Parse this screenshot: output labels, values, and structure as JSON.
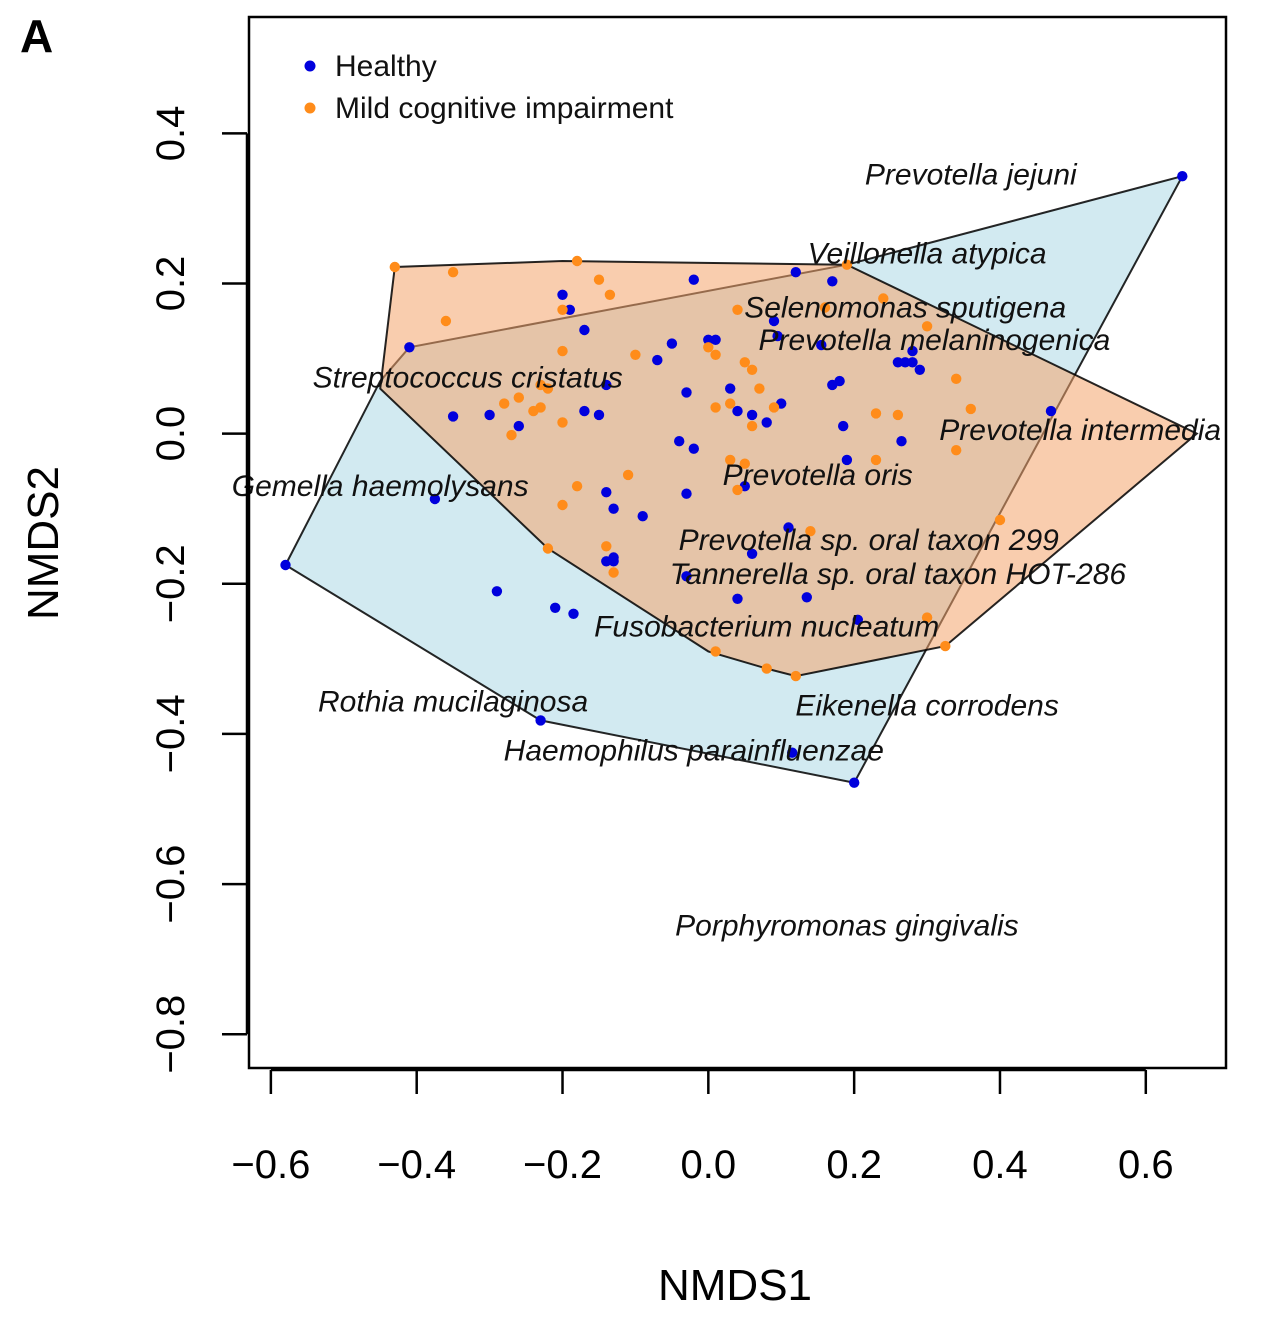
{
  "chart_data": {
    "type": "scatter",
    "panel_label": "A",
    "xlabel": "NMDS1",
    "ylabel": "NMDS2",
    "xlim": [
      -0.63,
      0.71
    ],
    "ylim": [
      -0.845,
      0.555
    ],
    "x_ticks": [
      -0.6,
      -0.4,
      -0.2,
      0.0,
      0.2,
      0.4,
      0.6
    ],
    "x_tick_labels": [
      "−0.6",
      "−0.4",
      "−0.2",
      "0.0",
      "0.2",
      "0.4",
      "0.6"
    ],
    "y_ticks": [
      0.4,
      0.2,
      0.0,
      -0.2,
      -0.4,
      -0.6,
      -0.8
    ],
    "y_tick_labels": [
      "0.4",
      "0.2",
      "0.0",
      "−0.2",
      "−0.4",
      "−0.6",
      "−0.8"
    ],
    "legend": {
      "position": "top-left",
      "entries": [
        {
          "name": "Healthy",
          "color": "#0000dd"
        },
        {
          "name": "Mild cognitive impairment",
          "color": "#ff8c1a"
        }
      ]
    },
    "hulls": [
      {
        "name": "Healthy",
        "fill": "#add8e6",
        "opacity": 0.55,
        "points": [
          [
            -0.58,
            -0.175
          ],
          [
            -0.45,
            0.07
          ],
          [
            -0.41,
            0.115
          ],
          [
            0.19,
            0.225
          ],
          [
            0.65,
            0.343
          ],
          [
            0.2,
            -0.465
          ],
          [
            -0.23,
            -0.382
          ]
        ]
      },
      {
        "name": "Mild cognitive impairment",
        "fill": "#f4a46b",
        "opacity": 0.55,
        "points": [
          [
            -0.45,
            0.06
          ],
          [
            -0.43,
            0.222
          ],
          [
            -0.2,
            0.23
          ],
          [
            0.19,
            0.225
          ],
          [
            0.67,
            0.0
          ],
          [
            0.325,
            -0.283
          ],
          [
            0.12,
            -0.323
          ],
          [
            0.08,
            -0.313
          ],
          [
            0.0,
            -0.29
          ],
          [
            -0.22,
            -0.153
          ]
        ]
      }
    ],
    "series": [
      {
        "name": "Healthy",
        "color": "#0000dd",
        "x": [
          0.65,
          -0.58,
          -0.41,
          -0.375,
          -0.23,
          0.2,
          0.12,
          0.17,
          -0.2,
          -0.19,
          -0.17,
          -0.14,
          -0.35,
          -0.3,
          -0.26,
          -0.17,
          -0.15,
          -0.14,
          -0.13,
          -0.13,
          -0.09,
          -0.05,
          -0.07,
          -0.02,
          0.0,
          0.01,
          0.09,
          0.095,
          0.155,
          0.17,
          0.18,
          0.185,
          0.19,
          0.265,
          0.27,
          0.28,
          0.28,
          0.29,
          0.26,
          0.47,
          0.03,
          0.04,
          0.06,
          0.08,
          0.1,
          -0.03,
          -0.04,
          -0.02,
          0.05,
          0.06,
          -0.03,
          -0.03,
          -0.14,
          -0.13,
          0.11,
          0.135,
          0.205,
          0.04,
          -0.29,
          -0.21,
          -0.185,
          0.115
        ],
        "y": [
          0.343,
          -0.175,
          0.115,
          -0.087,
          -0.382,
          -0.465,
          0.215,
          0.203,
          0.185,
          0.165,
          0.138,
          0.065,
          0.023,
          0.025,
          0.01,
          0.03,
          0.025,
          -0.078,
          -0.1,
          -0.17,
          -0.11,
          0.12,
          0.098,
          0.205,
          0.125,
          0.125,
          0.15,
          0.13,
          0.118,
          0.065,
          0.07,
          0.01,
          -0.035,
          -0.01,
          0.095,
          0.095,
          0.11,
          0.085,
          0.095,
          0.03,
          0.06,
          0.03,
          0.025,
          0.015,
          0.04,
          0.055,
          -0.01,
          -0.02,
          -0.07,
          -0.16,
          -0.08,
          -0.19,
          -0.17,
          -0.165,
          -0.125,
          -0.218,
          -0.248,
          -0.22,
          -0.21,
          -0.232,
          -0.24,
          -0.425
        ]
      },
      {
        "name": "Mild cognitive impairment",
        "color": "#ff8c1a",
        "x": [
          -0.43,
          -0.35,
          -0.36,
          -0.2,
          -0.18,
          -0.15,
          -0.135,
          -0.2,
          -0.22,
          -0.23,
          -0.28,
          -0.26,
          -0.24,
          -0.23,
          -0.27,
          -0.2,
          -0.1,
          -0.18,
          -0.2,
          -0.11,
          -0.22,
          -0.14,
          -0.13,
          0.0,
          0.01,
          0.03,
          0.05,
          0.06,
          0.09,
          0.16,
          0.19,
          0.24,
          0.3,
          0.34,
          0.36,
          0.23,
          0.26,
          0.34,
          0.4,
          0.3,
          0.325,
          0.01,
          0.08,
          0.12,
          0.01,
          0.04,
          0.05,
          0.06,
          0.03,
          0.04,
          0.14,
          0.23,
          0.07
        ],
        "y": [
          0.222,
          0.215,
          0.15,
          0.165,
          0.23,
          0.205,
          0.185,
          0.11,
          0.06,
          0.065,
          0.04,
          0.048,
          0.03,
          0.035,
          -0.002,
          0.015,
          0.105,
          -0.07,
          -0.095,
          -0.055,
          -0.153,
          -0.15,
          -0.185,
          0.115,
          0.035,
          -0.035,
          0.095,
          0.085,
          0.035,
          0.168,
          0.225,
          0.18,
          0.143,
          0.073,
          0.033,
          0.027,
          0.025,
          -0.022,
          -0.115,
          -0.245,
          -0.283,
          -0.29,
          -0.313,
          -0.323,
          0.105,
          -0.075,
          -0.04,
          0.01,
          0.04,
          0.165,
          -0.13,
          -0.035,
          0.06
        ]
      }
    ],
    "annotations": [
      {
        "text": "Prevotella jejuni",
        "x": 0.36,
        "y": 0.345
      },
      {
        "text": "Veillonella atypica",
        "x": 0.3,
        "y": 0.24
      },
      {
        "text": "Selenomonas sputigena",
        "x": 0.27,
        "y": 0.168
      },
      {
        "text": "Prevotella melaninogenica",
        "x": 0.31,
        "y": 0.125
      },
      {
        "text": "Streptococcus cristatus",
        "x": -0.33,
        "y": 0.075
      },
      {
        "text": "Prevotella intermedia",
        "x": 0.51,
        "y": 0.005
      },
      {
        "text": "Gemella haemolysans",
        "x": -0.45,
        "y": -0.07
      },
      {
        "text": "Prevotella oris",
        "x": 0.15,
        "y": -0.055
      },
      {
        "text": "Prevotella sp. oral taxon 299",
        "x": 0.22,
        "y": -0.142
      },
      {
        "text": "Tannerella sp. oral taxon HOT-286",
        "x": 0.26,
        "y": -0.187
      },
      {
        "text": "Fusobacterium nucleatum",
        "x": 0.08,
        "y": -0.257
      },
      {
        "text": "Rothia mucilaginosa",
        "x": -0.35,
        "y": -0.357
      },
      {
        "text": "Eikenella corrodens",
        "x": 0.3,
        "y": -0.362
      },
      {
        "text": "Haemophilus parainfluenzae",
        "x": -0.02,
        "y": -0.422
      },
      {
        "text": "Porphyromonas gingivalis",
        "x": 0.19,
        "y": -0.655
      }
    ]
  }
}
